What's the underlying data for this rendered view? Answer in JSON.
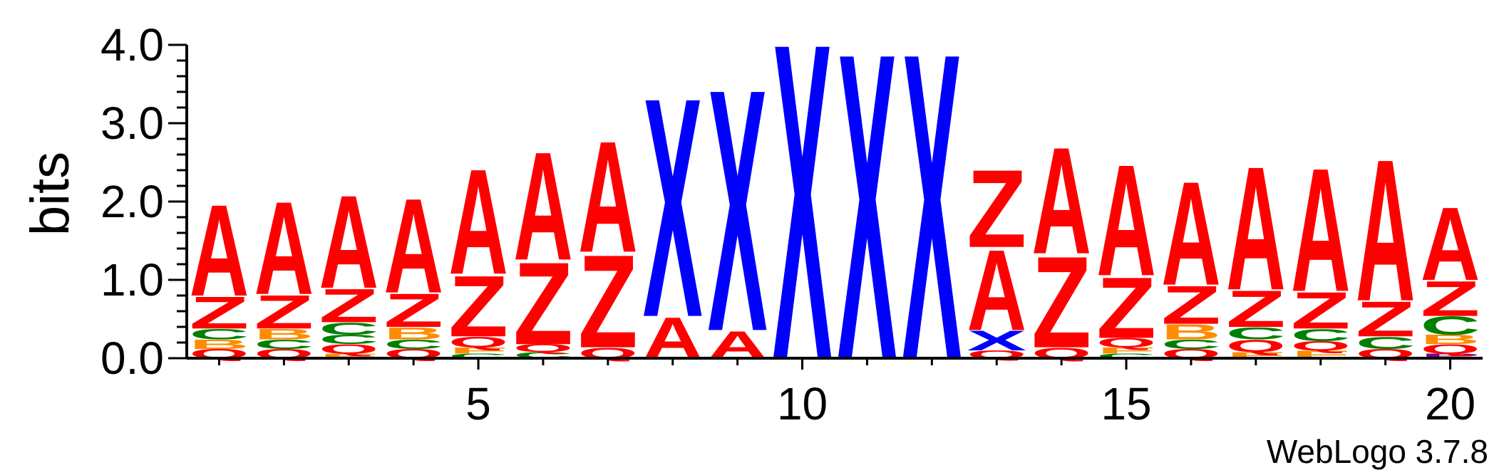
{
  "chart_data": {
    "type": "sequence-logo",
    "ylabel": "bits",
    "ylim": [
      0,
      4
    ],
    "yticks": [
      "0.0",
      "1.0",
      "2.0",
      "3.0",
      "4.0"
    ],
    "xlim": [
      0.5,
      20.5
    ],
    "xticks": [
      "5",
      "10",
      "15",
      "20"
    ],
    "footer": "WebLogo 3.7.8",
    "colors": {
      "A": "#ff0000",
      "Z": "#ff0000",
      "X": "#0000ff",
      "C": "#008000",
      "B": "#ff8c00",
      "Q": "#ff0000",
      "F": "#ff8c00",
      "P": "#800080"
    },
    "positions": [
      {
        "pos": 1,
        "stack": [
          [
            "Q",
            0.12
          ],
          [
            "B",
            0.12
          ],
          [
            "C",
            0.14
          ],
          [
            "Z",
            0.42
          ],
          [
            "A",
            1.2
          ]
        ]
      },
      {
        "pos": 2,
        "stack": [
          [
            "Q",
            0.12
          ],
          [
            "C",
            0.12
          ],
          [
            "B",
            0.14
          ],
          [
            "Z",
            0.44
          ],
          [
            "A",
            1.22
          ]
        ]
      },
      {
        "pos": 3,
        "stack": [
          [
            "F",
            0.06
          ],
          [
            "Q",
            0.12
          ],
          [
            "C",
            0.12
          ],
          [
            "C",
            0.16
          ],
          [
            "Z",
            0.44
          ],
          [
            "A",
            1.22
          ]
        ]
      },
      {
        "pos": 4,
        "stack": [
          [
            "Q",
            0.12
          ],
          [
            "C",
            0.12
          ],
          [
            "B",
            0.16
          ],
          [
            "Z",
            0.44
          ],
          [
            "A",
            1.24
          ]
        ]
      },
      {
        "pos": 5,
        "stack": [
          [
            "C",
            0.06
          ],
          [
            "F",
            0.08
          ],
          [
            "Q",
            0.14
          ],
          [
            "Z",
            0.8
          ],
          [
            "A",
            1.38
          ]
        ]
      },
      {
        "pos": 6,
        "stack": [
          [
            "C",
            0.08
          ],
          [
            "Q",
            0.1
          ],
          [
            "Z",
            1.08
          ],
          [
            "A",
            1.42
          ]
        ]
      },
      {
        "pos": 7,
        "stack": [
          [
            "Q",
            0.14
          ],
          [
            "Z",
            1.22
          ],
          [
            "A",
            1.46
          ]
        ]
      },
      {
        "pos": 8,
        "stack": [
          [
            "A",
            0.54
          ],
          [
            "X",
            2.88
          ]
        ]
      },
      {
        "pos": 9,
        "stack": [
          [
            "A",
            0.36
          ],
          [
            "X",
            3.18
          ]
        ]
      },
      {
        "pos": 10,
        "stack": [
          [
            "X",
            4.16
          ]
        ]
      },
      {
        "pos": 11,
        "stack": [
          [
            "X",
            4.03
          ]
        ]
      },
      {
        "pos": 12,
        "stack": [
          [
            "X",
            4.03
          ]
        ]
      },
      {
        "pos": 13,
        "stack": [
          [
            "Q",
            0.1
          ],
          [
            "X",
            0.26
          ],
          [
            "A",
            1.06
          ],
          [
            "Z",
            1.02
          ]
        ]
      },
      {
        "pos": 14,
        "stack": [
          [
            "Q",
            0.14
          ],
          [
            "Z",
            1.2
          ],
          [
            "A",
            1.4
          ]
        ]
      },
      {
        "pos": 15,
        "stack": [
          [
            "C",
            0.06
          ],
          [
            "F",
            0.08
          ],
          [
            "Q",
            0.12
          ],
          [
            "Z",
            0.8
          ],
          [
            "A",
            1.46
          ]
        ]
      },
      {
        "pos": 16,
        "stack": [
          [
            "Q",
            0.12
          ],
          [
            "C",
            0.12
          ],
          [
            "B",
            0.2
          ],
          [
            "Z",
            0.5
          ],
          [
            "A",
            1.36
          ]
        ]
      },
      {
        "pos": 17,
        "stack": [
          [
            "F",
            0.08
          ],
          [
            "Q",
            0.16
          ],
          [
            "C",
            0.16
          ],
          [
            "Z",
            0.48
          ],
          [
            "A",
            1.62
          ]
        ]
      },
      {
        "pos": 18,
        "stack": [
          [
            "F",
            0.1
          ],
          [
            "Q",
            0.12
          ],
          [
            "C",
            0.16
          ],
          [
            "Z",
            0.48
          ],
          [
            "A",
            1.62
          ]
        ]
      },
      {
        "pos": 19,
        "stack": [
          [
            "Q",
            0.12
          ],
          [
            "C",
            0.16
          ],
          [
            "Z",
            0.46
          ],
          [
            "A",
            1.86
          ]
        ]
      },
      {
        "pos": 20,
        "stack": [
          [
            "P",
            0.06
          ],
          [
            "Q",
            0.12
          ],
          [
            "B",
            0.12
          ],
          [
            "C",
            0.24
          ],
          [
            "Z",
            0.46
          ],
          [
            "A",
            0.96
          ]
        ]
      }
    ]
  }
}
